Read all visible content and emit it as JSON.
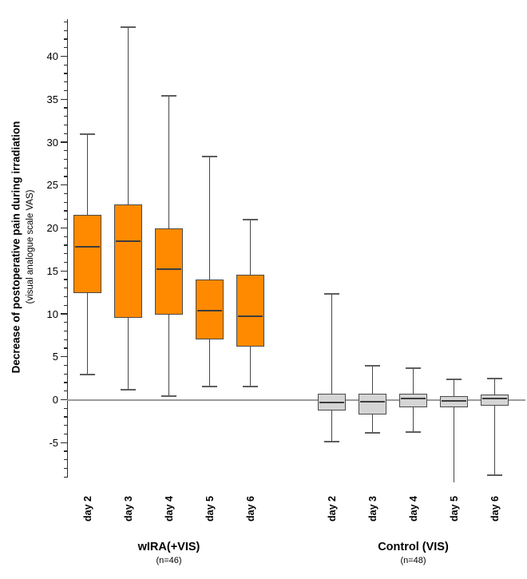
{
  "chart_data": {
    "type": "boxplot",
    "title": "",
    "ylabel_bold": "Decrease of postoperative pain during irradiation",
    "ylabel_sub": "(visual analogue scale VAS)",
    "ylim": [
      -9,
      44
    ],
    "ytick_major": [
      -5,
      0,
      5,
      10,
      15,
      20,
      25,
      30,
      35,
      40
    ],
    "ytick_minor_step": 1,
    "zero_line": 0,
    "grid": false,
    "legend_position": "none",
    "colors": {
      "wira_fill": "#ff8a00",
      "control_fill": "#d5d5d5",
      "box_border": "#4a4a4a",
      "median": "#3d3d3d",
      "whisker": "#474747",
      "zero_line": "#9c9c9c",
      "axis": "#2b2b2b"
    },
    "groups": [
      {
        "name": "wIRA(+VIS)",
        "n": "(n=46)",
        "fill": "#ff8a00",
        "boxes": [
          {
            "label": "day 2",
            "whisker_low": 2.9,
            "q1": 12.4,
            "median": 17.8,
            "q3": 21.5,
            "whisker_high": 30.9
          },
          {
            "label": "day 3",
            "whisker_low": 1.2,
            "q1": 9.5,
            "median": 18.5,
            "q3": 22.7,
            "whisker_high": 43.4
          },
          {
            "label": "day 4",
            "whisker_low": 0.4,
            "q1": 9.9,
            "median": 15.2,
            "q3": 20.0,
            "whisker_high": 35.4
          },
          {
            "label": "day 5",
            "whisker_low": 1.5,
            "q1": 7.0,
            "median": 10.4,
            "q3": 14.0,
            "whisker_high": 28.3
          },
          {
            "label": "day 6",
            "whisker_low": 1.5,
            "q1": 6.2,
            "median": 9.7,
            "q3": 14.6,
            "whisker_high": 21.0
          }
        ]
      },
      {
        "name": "Control (VIS)",
        "n": "(n=48)",
        "fill": "#d5d5d5",
        "boxes": [
          {
            "label": "day 2",
            "whisker_low": -4.9,
            "q1": -1.3,
            "median": -0.3,
            "q3": 0.7,
            "whisker_high": 12.3
          },
          {
            "label": "day 3",
            "whisker_low": -3.9,
            "q1": -1.7,
            "median": -0.2,
            "q3": 0.7,
            "whisker_high": 4.0
          },
          {
            "label": "day 4",
            "whisker_low": -3.8,
            "q1": -0.9,
            "median": 0.1,
            "q3": 0.7,
            "whisker_high": 3.7
          },
          {
            "label": "day 5",
            "whisker_low": -9.6,
            "q1": -0.9,
            "median": -0.1,
            "q3": 0.4,
            "whisker_high": 2.4,
            "cap_low": false
          },
          {
            "label": "day 6",
            "whisker_low": -8.8,
            "q1": -0.7,
            "median": 0.1,
            "q3": 0.6,
            "whisker_high": 2.5
          }
        ]
      }
    ]
  }
}
